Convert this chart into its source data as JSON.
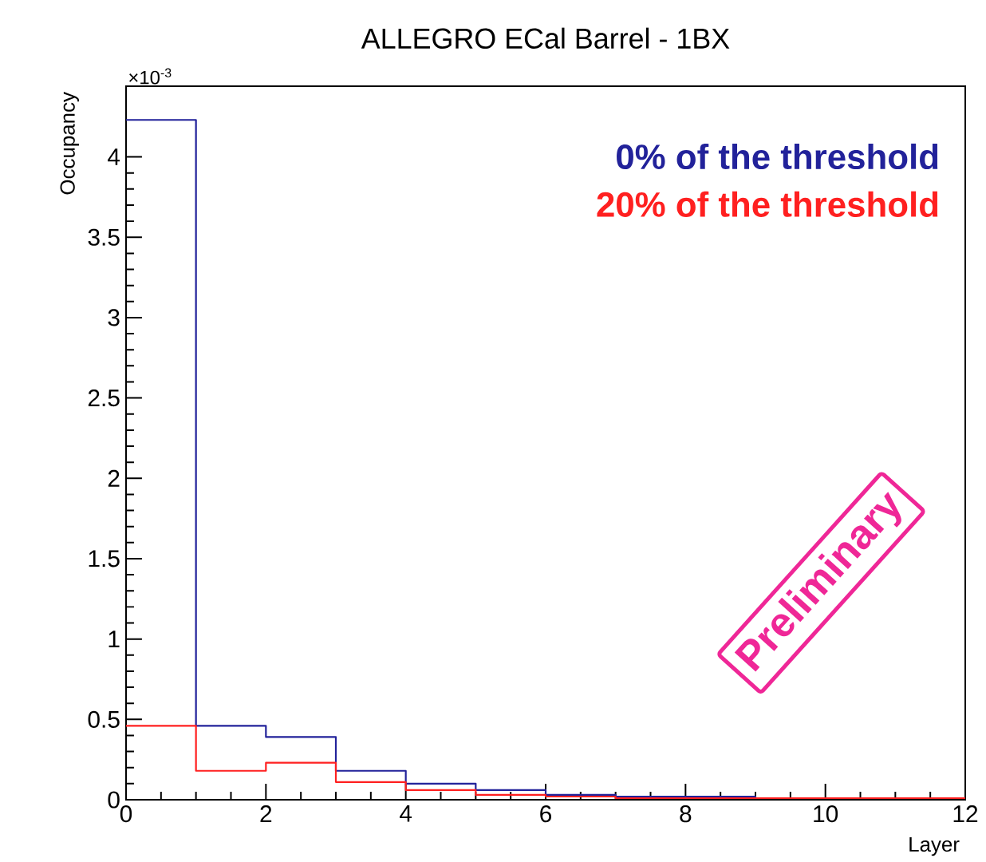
{
  "chart_data": {
    "type": "histogram",
    "title": "ALLEGRO ECal Barrel - 1BX",
    "xlabel": "Layer",
    "ylabel": "Occupancy",
    "bins": [
      0,
      1,
      2,
      3,
      4,
      5,
      6,
      7,
      8,
      9,
      10,
      11,
      12
    ],
    "series": [
      {
        "name": "0% of the threshold",
        "color": "#22229a",
        "values": [
          4.23,
          0.46,
          0.39,
          0.18,
          0.1,
          0.06,
          0.03,
          0.02,
          0.02,
          0.01,
          0.01,
          0.01
        ]
      },
      {
        "name": "20% of the threshold",
        "color": "#ff2020",
        "values": [
          0.46,
          0.18,
          0.23,
          0.11,
          0.06,
          0.03,
          0.02,
          0.01,
          0.01,
          0.01,
          0.01,
          0.01
        ]
      }
    ],
    "xlim": [
      0,
      12
    ],
    "ylim": [
      0,
      4.44
    ],
    "xticks": [
      0,
      2,
      4,
      6,
      8,
      10,
      12
    ],
    "yticks": [
      0,
      0.5,
      1,
      1.5,
      2,
      2.5,
      3,
      3.5,
      4
    ],
    "legend": "top right",
    "annotations": [
      "×10$^{-3}$",
      "Preliminary"
    ]
  }
}
